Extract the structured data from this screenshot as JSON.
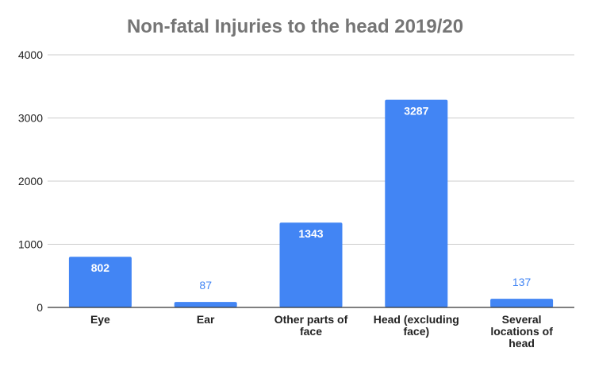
{
  "chart_data": {
    "type": "bar",
    "title": "Non-fatal Injuries to the head 2019/20",
    "categories": [
      [
        "Eye"
      ],
      [
        "Ear"
      ],
      [
        "Other parts of",
        "face"
      ],
      [
        "Head (excluding",
        "face)"
      ],
      [
        "Several",
        "locations of",
        "head"
      ]
    ],
    "values": [
      802,
      87,
      1343,
      3287,
      137
    ],
    "data_labels": [
      "802",
      "87",
      "1343",
      "3287",
      "137"
    ],
    "y_ticks": [
      "0",
      "1000",
      "2000",
      "3000",
      "4000"
    ],
    "ylim": [
      0,
      4000
    ],
    "xlabel": "",
    "ylabel": "",
    "grid": true,
    "legend": "none",
    "bar_color": "#4285f4"
  }
}
